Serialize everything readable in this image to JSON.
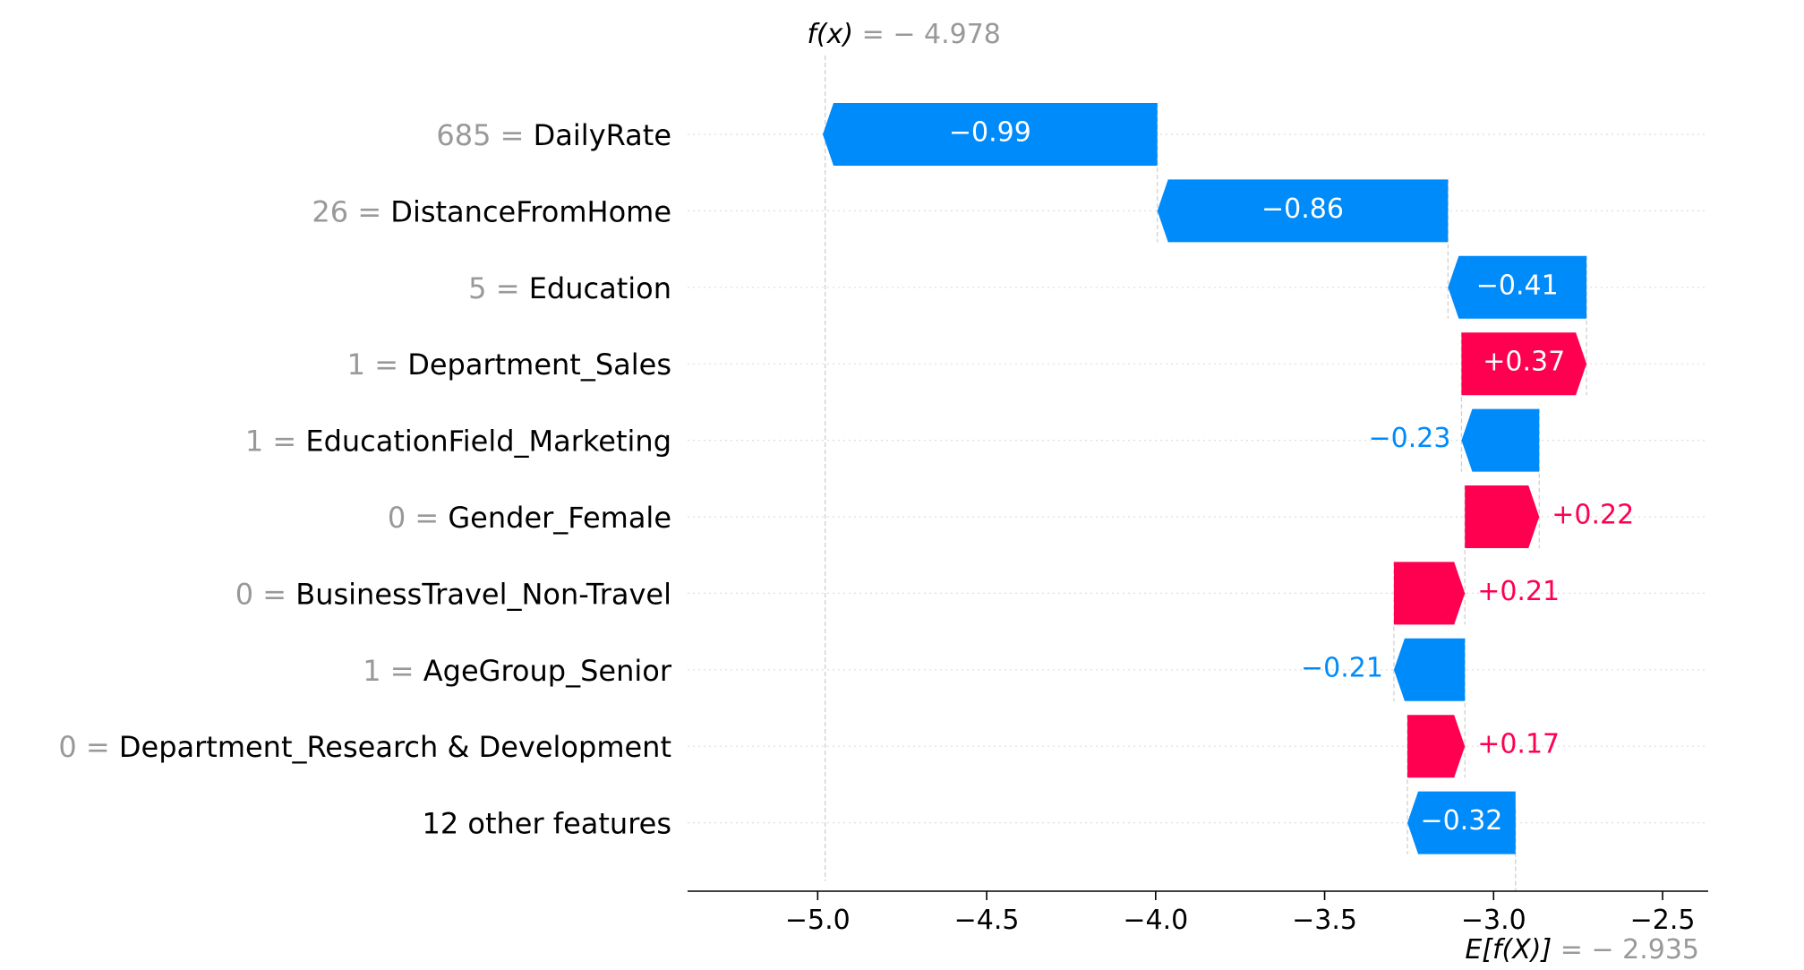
{
  "chart_data": {
    "type": "waterfall",
    "fx_label": "f(x)",
    "fx_value": "− 4.978",
    "efx_label": "E[f(X)]",
    "efx_value": "− 2.935",
    "base_value": -2.935,
    "final_value": -4.978,
    "xlim": [
      -5.385,
      -2.365
    ],
    "xticks": [
      -5.0,
      -4.5,
      -4.0,
      -3.5,
      -3.0,
      -2.5
    ],
    "xtick_labels": [
      "−5.0",
      "−4.5",
      "−4.0",
      "−3.5",
      "−3.0",
      "−2.5"
    ],
    "features": [
      {
        "value": "685",
        "name": "DailyRate",
        "contribution": -0.99,
        "label": "−0.99"
      },
      {
        "value": "26",
        "name": "DistanceFromHome",
        "contribution": -0.86,
        "label": "−0.86"
      },
      {
        "value": "5",
        "name": "Education",
        "contribution": -0.41,
        "label": "−0.41"
      },
      {
        "value": "1",
        "name": "Department_Sales",
        "contribution": 0.37,
        "label": "+0.37"
      },
      {
        "value": "1",
        "name": "EducationField_Marketing",
        "contribution": -0.23,
        "label": "−0.23"
      },
      {
        "value": "0",
        "name": "Gender_Female",
        "contribution": 0.22,
        "label": "+0.22"
      },
      {
        "value": "0",
        "name": "BusinessTravel_Non-Travel",
        "contribution": 0.21,
        "label": "+0.21"
      },
      {
        "value": "1",
        "name": "AgeGroup_Senior",
        "contribution": -0.21,
        "label": "−0.21"
      },
      {
        "value": "0",
        "name": "Department_Research & Development",
        "contribution": 0.17,
        "label": "+0.17"
      },
      {
        "value": "",
        "name": "12 other features",
        "contribution": -0.32,
        "label": "−0.32"
      }
    ],
    "colors": {
      "negative": "#008bfb",
      "positive": "#ff0051",
      "value_text": "#999999",
      "text": "#000000",
      "grid": "#cccccc"
    }
  }
}
